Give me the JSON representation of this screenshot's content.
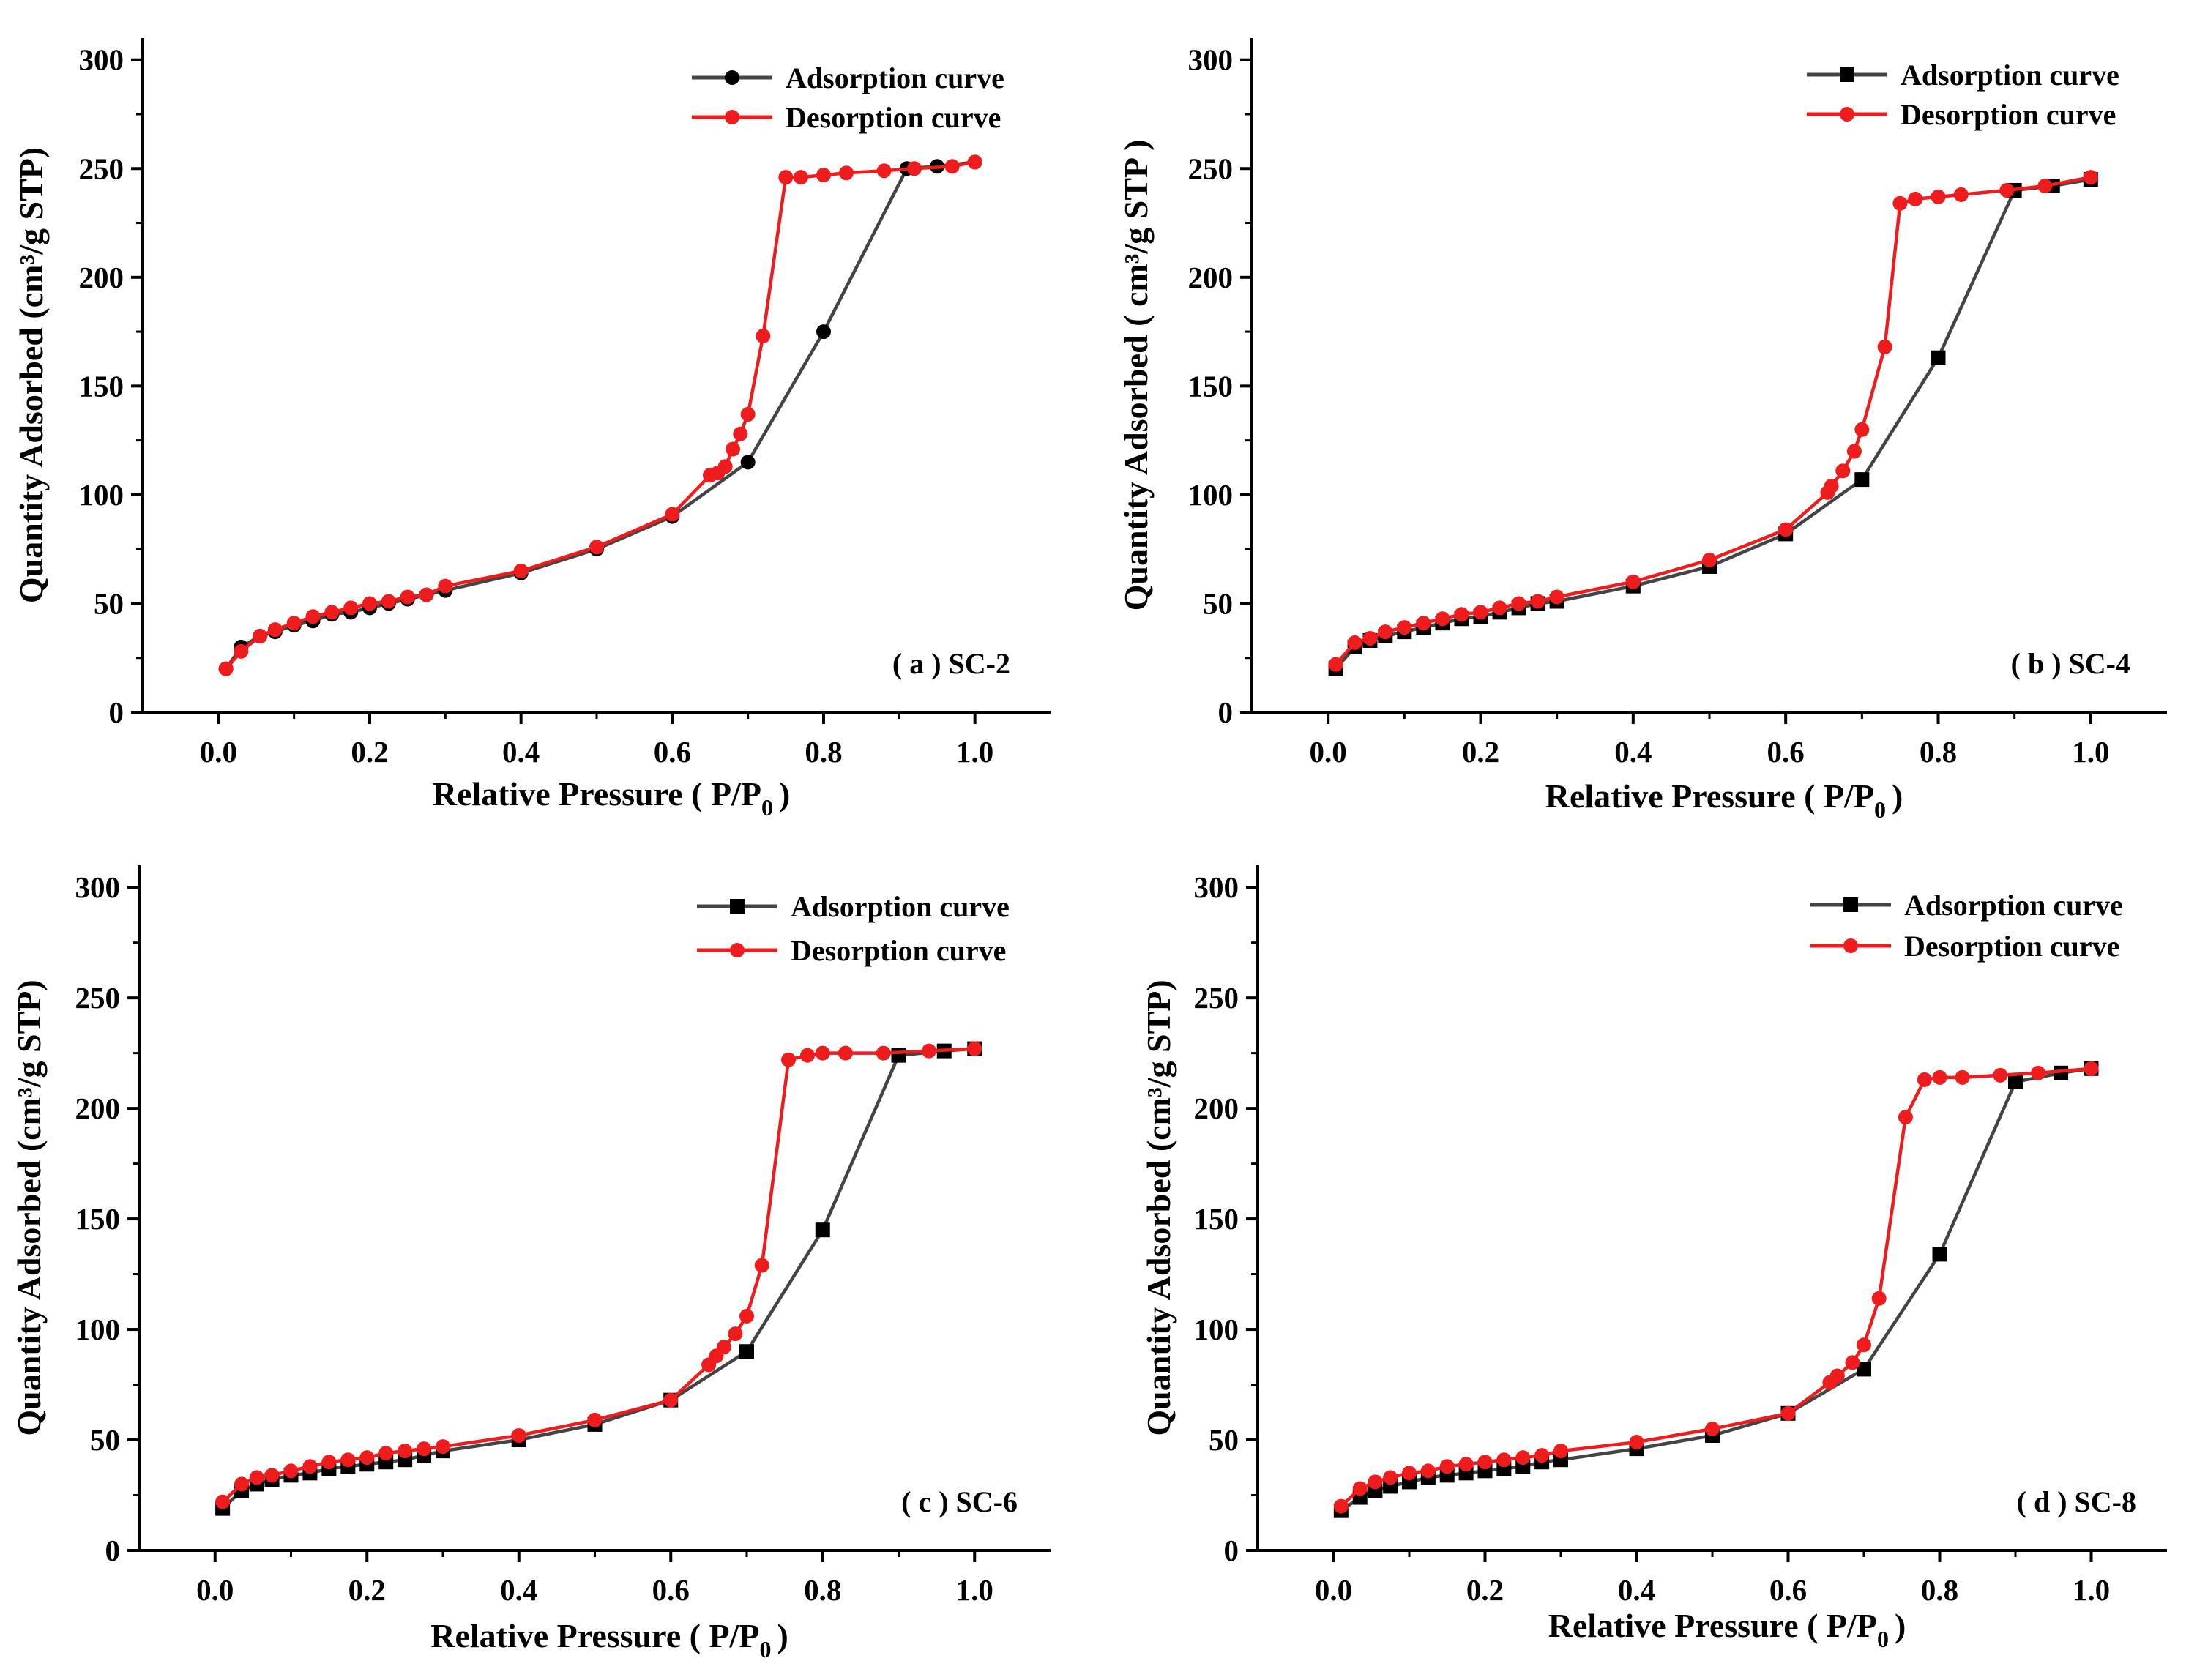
{
  "figure": {
    "common": {
      "xlabel_main": "Relative Pressure ( P/P",
      "xlabel_sub": "0",
      "xlabel_end": ")",
      "x_ticks": [
        "0.0",
        "0.2",
        "0.4",
        "0.6",
        "0.8",
        "1.0"
      ],
      "y_ticks": [
        "0",
        "50",
        "100",
        "150",
        "200",
        "250",
        "300"
      ],
      "colors": {
        "adsorption": "#000000",
        "adsorption_line": "#444444",
        "desorption": "#ee1c1c"
      }
    }
  },
  "chart_data": [
    {
      "type": "line",
      "title": "",
      "panel_label": "( a ) SC-2",
      "ylabel": "Quantity Adsorbed (cm³/g STP)",
      "xlabel": "Relative Pressure ( P/P0 )",
      "xlim": [
        -0.1,
        1.1
      ],
      "ylim": [
        0,
        310
      ],
      "marker": "circle",
      "legend": "top-right",
      "series": [
        {
          "name": "Adsorption curve",
          "x": [
            0.01,
            0.03,
            0.055,
            0.075,
            0.1,
            0.125,
            0.15,
            0.175,
            0.2,
            0.225,
            0.25,
            0.275,
            0.3,
            0.4,
            0.5,
            0.6,
            0.7,
            0.8,
            0.91,
            0.95,
            1.0
          ],
          "y": [
            20,
            30,
            35,
            37,
            40,
            42,
            45,
            46,
            48,
            50,
            52,
            54,
            56,
            64,
            75,
            90,
            115,
            175,
            250,
            251,
            253
          ]
        },
        {
          "name": "Desorption curve",
          "x": [
            1.0,
            0.97,
            0.92,
            0.88,
            0.83,
            0.8,
            0.77,
            0.75,
            0.72,
            0.7,
            0.69,
            0.68,
            0.67,
            0.66,
            0.65,
            0.6,
            0.5,
            0.4,
            0.3,
            0.275,
            0.25,
            0.225,
            0.2,
            0.175,
            0.15,
            0.125,
            0.1,
            0.075,
            0.055,
            0.03,
            0.01
          ],
          "y": [
            253,
            251,
            250,
            249,
            248,
            247,
            246,
            246,
            173,
            137,
            128,
            121,
            113,
            110,
            109,
            91,
            76,
            65,
            58,
            54,
            53,
            51,
            50,
            48,
            46,
            44,
            41,
            38,
            35,
            28,
            20
          ]
        }
      ]
    },
    {
      "type": "line",
      "title": "",
      "panel_label": "( b ) SC-4",
      "ylabel": "Quantity Adsorbed ( cm³/g STP )",
      "xlabel": "Relative Pressure ( P/P0 )",
      "xlim": [
        -0.1,
        1.1
      ],
      "ylim": [
        0,
        310
      ],
      "marker": "square",
      "legend": "top-right",
      "series": [
        {
          "name": "Adsorption curve",
          "x": [
            0.01,
            0.035,
            0.055,
            0.075,
            0.1,
            0.125,
            0.15,
            0.175,
            0.2,
            0.225,
            0.25,
            0.275,
            0.3,
            0.4,
            0.5,
            0.6,
            0.7,
            0.8,
            0.9,
            0.95,
            1.0
          ],
          "y": [
            20,
            30,
            33,
            35,
            37,
            39,
            41,
            43,
            44,
            46,
            48,
            50,
            51,
            58,
            67,
            82,
            107,
            163,
            240,
            242,
            245
          ]
        },
        {
          "name": "Desorption curve",
          "x": [
            1.0,
            0.94,
            0.89,
            0.83,
            0.8,
            0.77,
            0.75,
            0.73,
            0.7,
            0.69,
            0.675,
            0.66,
            0.655,
            0.6,
            0.5,
            0.4,
            0.3,
            0.275,
            0.25,
            0.225,
            0.2,
            0.175,
            0.15,
            0.125,
            0.1,
            0.075,
            0.055,
            0.035,
            0.01
          ],
          "y": [
            246,
            242,
            240,
            238,
            237,
            236,
            234,
            168,
            130,
            120,
            111,
            104,
            101,
            84,
            70,
            60,
            53,
            51,
            50,
            48,
            46,
            45,
            43,
            41,
            39,
            37,
            34,
            32,
            22
          ]
        }
      ]
    },
    {
      "type": "line",
      "title": "",
      "panel_label": "( c ) SC-6",
      "ylabel": "Quantity Adsorbed (cm³/g STP)",
      "xlabel": "Relative Pressure ( P/P0 )",
      "xlim": [
        -0.1,
        1.1
      ],
      "ylim": [
        0,
        310
      ],
      "marker": "square",
      "legend": "top-right",
      "series": [
        {
          "name": "Adsorption curve",
          "x": [
            0.01,
            0.035,
            0.055,
            0.075,
            0.1,
            0.125,
            0.15,
            0.175,
            0.2,
            0.225,
            0.25,
            0.275,
            0.3,
            0.4,
            0.5,
            0.6,
            0.7,
            0.8,
            0.9,
            0.96,
            1.0
          ],
          "y": [
            19,
            27,
            30,
            32,
            34,
            35,
            37,
            38,
            39,
            40,
            41,
            43,
            45,
            50,
            57,
            68,
            90,
            145,
            224,
            226,
            227
          ]
        },
        {
          "name": "Desorption curve",
          "x": [
            1.0,
            0.94,
            0.88,
            0.83,
            0.8,
            0.78,
            0.755,
            0.72,
            0.7,
            0.685,
            0.67,
            0.66,
            0.65,
            0.6,
            0.5,
            0.4,
            0.3,
            0.275,
            0.25,
            0.225,
            0.2,
            0.175,
            0.15,
            0.125,
            0.1,
            0.075,
            0.055,
            0.035,
            0.01
          ],
          "y": [
            227,
            226,
            225,
            225,
            225,
            224,
            222,
            129,
            106,
            98,
            92,
            88,
            84,
            68,
            59,
            52,
            47,
            46,
            45,
            44,
            42,
            41,
            40,
            38,
            36,
            34,
            33,
            30,
            22
          ]
        }
      ]
    },
    {
      "type": "line",
      "title": "",
      "panel_label": "( d ) SC-8",
      "ylabel": "Quantity Adsorbed (cm³/g STP)",
      "xlabel": "Relative Pressure ( P/P0 )",
      "xlim": [
        -0.1,
        1.1
      ],
      "ylim": [
        0,
        310
      ],
      "marker": "square",
      "legend": "top-right",
      "series": [
        {
          "name": "Adsorption curve",
          "x": [
            0.01,
            0.035,
            0.055,
            0.075,
            0.1,
            0.125,
            0.15,
            0.175,
            0.2,
            0.225,
            0.25,
            0.275,
            0.3,
            0.4,
            0.5,
            0.6,
            0.7,
            0.8,
            0.9,
            0.96,
            1.0
          ],
          "y": [
            18,
            24,
            27,
            29,
            31,
            33,
            34,
            35,
            36,
            37,
            38,
            40,
            41,
            46,
            52,
            62,
            82,
            134,
            212,
            216,
            218
          ]
        },
        {
          "name": "Desorption curve",
          "x": [
            1.0,
            0.93,
            0.88,
            0.83,
            0.8,
            0.78,
            0.755,
            0.72,
            0.7,
            0.685,
            0.665,
            0.655,
            0.6,
            0.5,
            0.4,
            0.3,
            0.275,
            0.25,
            0.225,
            0.2,
            0.175,
            0.15,
            0.125,
            0.1,
            0.075,
            0.055,
            0.035,
            0.01
          ],
          "y": [
            218,
            216,
            215,
            214,
            214,
            213,
            196,
            114,
            93,
            85,
            79,
            76,
            62,
            55,
            49,
            45,
            43,
            42,
            41,
            40,
            39,
            38,
            36,
            35,
            33,
            31,
            28,
            20
          ]
        }
      ]
    }
  ]
}
